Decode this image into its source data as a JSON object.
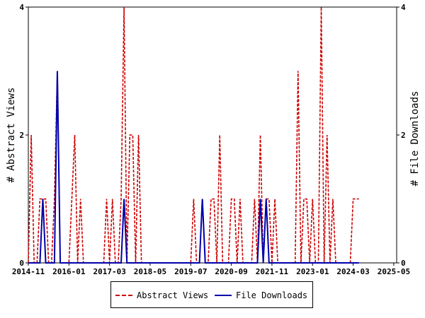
{
  "chart_data": {
    "type": "line",
    "ylabel_left": "# Abstract Views",
    "ylabel_right": "# File Downloads",
    "ylim": [
      0,
      4
    ],
    "yticks": [
      0,
      2,
      4
    ],
    "x_tick_labels": [
      "2014-11",
      "2016-01",
      "2017-03",
      "2018-05",
      "2019-07",
      "2020-09",
      "2021-11",
      "2023-01",
      "2024-03",
      "2025-05"
    ],
    "x_range": [
      "2014-11",
      "2025-06"
    ],
    "legend_position": "bottom",
    "series": [
      {
        "name": "Abstract Views",
        "color": "#cc0000",
        "style": "dashed",
        "axis": "left",
        "points": [
          [
            "2014-11",
            0
          ],
          [
            "2014-12",
            2
          ],
          [
            "2015-01",
            0
          ],
          [
            "2015-02",
            0
          ],
          [
            "2015-03",
            1
          ],
          [
            "2015-04",
            1
          ],
          [
            "2015-05",
            1
          ],
          [
            "2015-06",
            0
          ],
          [
            "2015-07",
            0
          ],
          [
            "2015-08",
            1
          ],
          [
            "2015-09",
            3
          ],
          [
            "2015-10",
            0
          ],
          [
            "2015-11",
            0
          ],
          [
            "2015-12",
            0
          ],
          [
            "2016-01",
            0
          ],
          [
            "2016-02",
            1
          ],
          [
            "2016-03",
            2
          ],
          [
            "2016-04",
            0
          ],
          [
            "2016-05",
            1
          ],
          [
            "2016-06",
            0
          ],
          [
            "2016-07",
            0
          ],
          [
            "2016-08",
            0
          ],
          [
            "2016-09",
            0
          ],
          [
            "2016-10",
            0
          ],
          [
            "2016-11",
            0
          ],
          [
            "2016-12",
            0
          ],
          [
            "2017-01",
            0
          ],
          [
            "2017-02",
            1
          ],
          [
            "2017-03",
            0
          ],
          [
            "2017-04",
            1
          ],
          [
            "2017-05",
            0
          ],
          [
            "2017-06",
            0
          ],
          [
            "2017-07",
            1
          ],
          [
            "2017-08",
            4
          ],
          [
            "2017-09",
            0
          ],
          [
            "2017-10",
            2
          ],
          [
            "2017-11",
            2
          ],
          [
            "2017-12",
            0
          ],
          [
            "2018-01",
            2
          ],
          [
            "2018-02",
            0
          ],
          [
            "2018-03",
            0
          ],
          [
            "2018-04",
            0
          ],
          [
            "2018-05",
            0
          ],
          [
            "2018-06",
            0
          ],
          [
            "2018-07",
            0
          ],
          [
            "2018-08",
            0
          ],
          [
            "2018-09",
            0
          ],
          [
            "2018-10",
            0
          ],
          [
            "2018-11",
            0
          ],
          [
            "2018-12",
            0
          ],
          [
            "2019-01",
            0
          ],
          [
            "2019-02",
            0
          ],
          [
            "2019-03",
            0
          ],
          [
            "2019-04",
            0
          ],
          [
            "2019-05",
            0
          ],
          [
            "2019-06",
            0
          ],
          [
            "2019-07",
            0
          ],
          [
            "2019-08",
            1
          ],
          [
            "2019-09",
            0
          ],
          [
            "2019-10",
            0
          ],
          [
            "2019-11",
            1
          ],
          [
            "2019-12",
            0
          ],
          [
            "2020-01",
            0
          ],
          [
            "2020-02",
            1
          ],
          [
            "2020-03",
            1
          ],
          [
            "2020-04",
            0
          ],
          [
            "2020-05",
            2
          ],
          [
            "2020-06",
            0
          ],
          [
            "2020-07",
            0
          ],
          [
            "2020-08",
            0
          ],
          [
            "2020-09",
            1
          ],
          [
            "2020-10",
            1
          ],
          [
            "2020-11",
            0
          ],
          [
            "2020-12",
            1
          ],
          [
            "2021-01",
            0
          ],
          [
            "2021-02",
            0
          ],
          [
            "2021-03",
            0
          ],
          [
            "2021-04",
            0
          ],
          [
            "2021-05",
            1
          ],
          [
            "2021-06",
            0
          ],
          [
            "2021-07",
            2
          ],
          [
            "2021-08",
            0
          ],
          [
            "2021-09",
            1
          ],
          [
            "2021-10",
            1
          ],
          [
            "2021-11",
            0
          ],
          [
            "2021-12",
            1
          ],
          [
            "2022-01",
            0
          ],
          [
            "2022-02",
            0
          ],
          [
            "2022-03",
            0
          ],
          [
            "2022-04",
            0
          ],
          [
            "2022-05",
            0
          ],
          [
            "2022-06",
            0
          ],
          [
            "2022-07",
            0
          ],
          [
            "2022-08",
            3
          ],
          [
            "2022-09",
            0
          ],
          [
            "2022-10",
            1
          ],
          [
            "2022-11",
            1
          ],
          [
            "2022-12",
            0
          ],
          [
            "2023-01",
            1
          ],
          [
            "2023-02",
            0
          ],
          [
            "2023-03",
            0
          ],
          [
            "2023-04",
            4
          ],
          [
            "2023-05",
            0
          ],
          [
            "2023-06",
            2
          ],
          [
            "2023-07",
            0
          ],
          [
            "2023-08",
            1
          ],
          [
            "2023-09",
            0
          ],
          [
            "2023-10",
            0
          ],
          [
            "2023-11",
            0
          ],
          [
            "2023-12",
            0
          ],
          [
            "2024-01",
            0
          ],
          [
            "2024-02",
            0
          ],
          [
            "2024-03",
            1
          ],
          [
            "2024-04",
            1
          ],
          [
            "2024-05",
            1
          ]
        ]
      },
      {
        "name": "File Downloads",
        "color": "#0000aa",
        "style": "solid",
        "axis": "right",
        "points": [
          [
            "2014-11",
            0
          ],
          [
            "2014-12",
            0
          ],
          [
            "2015-01",
            0
          ],
          [
            "2015-02",
            0
          ],
          [
            "2015-03",
            0
          ],
          [
            "2015-04",
            1
          ],
          [
            "2015-05",
            0
          ],
          [
            "2015-06",
            0
          ],
          [
            "2015-07",
            0
          ],
          [
            "2015-08",
            0
          ],
          [
            "2015-09",
            3
          ],
          [
            "2015-10",
            0
          ],
          [
            "2015-11",
            0
          ],
          [
            "2015-12",
            0
          ],
          [
            "2016-01",
            0
          ],
          [
            "2016-02",
            0
          ],
          [
            "2016-03",
            0
          ],
          [
            "2016-04",
            0
          ],
          [
            "2016-05",
            0
          ],
          [
            "2016-06",
            0
          ],
          [
            "2016-07",
            0
          ],
          [
            "2016-08",
            0
          ],
          [
            "2016-09",
            0
          ],
          [
            "2016-10",
            0
          ],
          [
            "2016-11",
            0
          ],
          [
            "2016-12",
            0
          ],
          [
            "2017-01",
            0
          ],
          [
            "2017-02",
            0
          ],
          [
            "2017-03",
            0
          ],
          [
            "2017-04",
            0
          ],
          [
            "2017-05",
            0
          ],
          [
            "2017-06",
            0
          ],
          [
            "2017-07",
            0
          ],
          [
            "2017-08",
            1
          ],
          [
            "2017-09",
            0
          ],
          [
            "2017-10",
            0
          ],
          [
            "2017-11",
            0
          ],
          [
            "2017-12",
            0
          ],
          [
            "2018-01",
            0
          ],
          [
            "2018-02",
            0
          ],
          [
            "2018-03",
            0
          ],
          [
            "2018-04",
            0
          ],
          [
            "2018-05",
            0
          ],
          [
            "2018-06",
            0
          ],
          [
            "2018-07",
            0
          ],
          [
            "2018-08",
            0
          ],
          [
            "2018-09",
            0
          ],
          [
            "2018-10",
            0
          ],
          [
            "2018-11",
            0
          ],
          [
            "2018-12",
            0
          ],
          [
            "2019-01",
            0
          ],
          [
            "2019-02",
            0
          ],
          [
            "2019-03",
            0
          ],
          [
            "2019-04",
            0
          ],
          [
            "2019-05",
            0
          ],
          [
            "2019-06",
            0
          ],
          [
            "2019-07",
            0
          ],
          [
            "2019-08",
            0
          ],
          [
            "2019-09",
            0
          ],
          [
            "2019-10",
            0
          ],
          [
            "2019-11",
            1
          ],
          [
            "2019-12",
            0
          ],
          [
            "2020-01",
            0
          ],
          [
            "2020-02",
            0
          ],
          [
            "2020-03",
            0
          ],
          [
            "2020-04",
            0
          ],
          [
            "2020-05",
            0
          ],
          [
            "2020-06",
            0
          ],
          [
            "2020-07",
            0
          ],
          [
            "2020-08",
            0
          ],
          [
            "2020-09",
            0
          ],
          [
            "2020-10",
            0
          ],
          [
            "2020-11",
            0
          ],
          [
            "2020-12",
            0
          ],
          [
            "2021-01",
            0
          ],
          [
            "2021-02",
            0
          ],
          [
            "2021-03",
            0
          ],
          [
            "2021-04",
            0
          ],
          [
            "2021-05",
            0
          ],
          [
            "2021-06",
            0
          ],
          [
            "2021-07",
            1
          ],
          [
            "2021-08",
            0
          ],
          [
            "2021-09",
            1
          ],
          [
            "2021-10",
            0
          ],
          [
            "2021-11",
            0
          ],
          [
            "2021-12",
            0
          ],
          [
            "2022-01",
            0
          ],
          [
            "2022-02",
            0
          ],
          [
            "2022-03",
            0
          ],
          [
            "2022-04",
            0
          ],
          [
            "2022-05",
            0
          ],
          [
            "2022-06",
            0
          ],
          [
            "2022-07",
            0
          ],
          [
            "2022-08",
            0
          ],
          [
            "2022-09",
            0
          ],
          [
            "2022-10",
            0
          ],
          [
            "2022-11",
            0
          ],
          [
            "2022-12",
            0
          ],
          [
            "2023-01",
            0
          ],
          [
            "2023-02",
            0
          ],
          [
            "2023-03",
            0
          ],
          [
            "2023-04",
            0
          ],
          [
            "2023-05",
            0
          ],
          [
            "2023-06",
            0
          ],
          [
            "2023-07",
            0
          ],
          [
            "2023-08",
            0
          ],
          [
            "2023-09",
            0
          ],
          [
            "2023-10",
            0
          ],
          [
            "2023-11",
            0
          ],
          [
            "2023-12",
            0
          ],
          [
            "2024-01",
            0
          ],
          [
            "2024-02",
            0
          ],
          [
            "2024-03",
            0
          ],
          [
            "2024-04",
            0
          ],
          [
            "2024-05",
            0
          ]
        ]
      }
    ]
  },
  "legend": {
    "abstract_views": "Abstract Views",
    "file_downloads": "File Downloads"
  }
}
